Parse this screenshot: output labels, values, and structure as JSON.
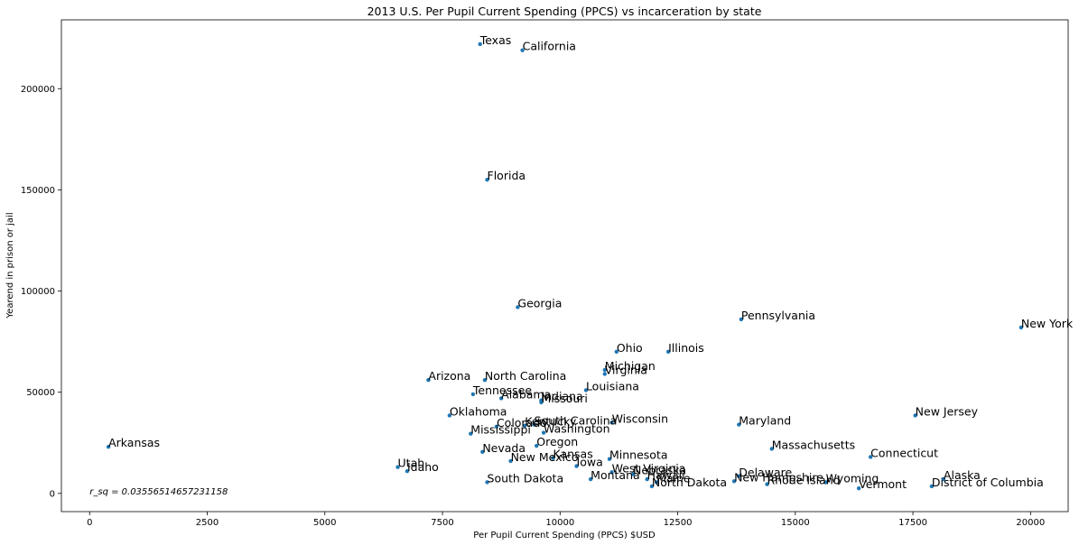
{
  "chart_data": {
    "type": "scatter",
    "title": "2013 U.S. Per Pupil Current Spending (PPCS) vs incarceration by state",
    "xlabel": "Per Pupil Current Spending (PPCS) $USD",
    "ylabel": "Yearend in prison or jail",
    "xlim": [
      -600,
      20800
    ],
    "ylim": [
      -9000,
      234000
    ],
    "xticks": [
      0,
      2500,
      5000,
      7500,
      10000,
      12500,
      15000,
      17500,
      20000
    ],
    "yticks": [
      0,
      50000,
      100000,
      150000,
      200000
    ],
    "grid": false,
    "marker_color": "#1f77b4",
    "annotation": "r_sq = 0.03556514657231158",
    "points": [
      {
        "label": "Texas",
        "x": 8300,
        "y": 222000
      },
      {
        "label": "California",
        "x": 9200,
        "y": 219000
      },
      {
        "label": "Florida",
        "x": 8450,
        "y": 155000
      },
      {
        "label": "Georgia",
        "x": 9100,
        "y": 92000
      },
      {
        "label": "Pennsylvania",
        "x": 13850,
        "y": 86000
      },
      {
        "label": "New York",
        "x": 19800,
        "y": 82000
      },
      {
        "label": "Ohio",
        "x": 11200,
        "y": 70000
      },
      {
        "label": "Illinois",
        "x": 12300,
        "y": 70000
      },
      {
        "label": "Michigan",
        "x": 10950,
        "y": 61000
      },
      {
        "label": "Virginia",
        "x": 10950,
        "y": 59000
      },
      {
        "label": "Arizona",
        "x": 7200,
        "y": 56000
      },
      {
        "label": "North Carolina",
        "x": 8400,
        "y": 56000
      },
      {
        "label": "Louisiana",
        "x": 10550,
        "y": 51000
      },
      {
        "label": "Tennessee",
        "x": 8150,
        "y": 49000
      },
      {
        "label": "Alabama",
        "x": 8750,
        "y": 47000
      },
      {
        "label": "Indiana",
        "x": 9600,
        "y": 46000
      },
      {
        "label": "Missouri",
        "x": 9600,
        "y": 45000
      },
      {
        "label": "New Jersey",
        "x": 17550,
        "y": 38500
      },
      {
        "label": "Oklahoma",
        "x": 7650,
        "y": 38500
      },
      {
        "label": "Wisconsin",
        "x": 11100,
        "y": 35000
      },
      {
        "label": "Maryland",
        "x": 13800,
        "y": 34000
      },
      {
        "label": "South Carolina",
        "x": 9450,
        "y": 34000
      },
      {
        "label": "Kentucky",
        "x": 9250,
        "y": 33500
      },
      {
        "label": "Colorado",
        "x": 8650,
        "y": 33000
      },
      {
        "label": "Washington",
        "x": 9650,
        "y": 30000
      },
      {
        "label": "Mississippi",
        "x": 8100,
        "y": 29500
      },
      {
        "label": "Arkansas",
        "x": 400,
        "y": 23000
      },
      {
        "label": "Oregon",
        "x": 9500,
        "y": 23500
      },
      {
        "label": "Massachusetts",
        "x": 14500,
        "y": 22000
      },
      {
        "label": "Nevada",
        "x": 8350,
        "y": 20500
      },
      {
        "label": "Connecticut",
        "x": 16600,
        "y": 18000
      },
      {
        "label": "Minnesota",
        "x": 11050,
        "y": 17000
      },
      {
        "label": "Kansas",
        "x": 9850,
        "y": 17500
      },
      {
        "label": "New Mexico",
        "x": 8950,
        "y": 16000
      },
      {
        "label": "Iowa",
        "x": 10350,
        "y": 13500
      },
      {
        "label": "Utah",
        "x": 6550,
        "y": 13000
      },
      {
        "label": "Idaho",
        "x": 6750,
        "y": 11000
      },
      {
        "label": "West Virginia",
        "x": 11100,
        "y": 10500
      },
      {
        "label": "Nebraska",
        "x": 11550,
        "y": 9500
      },
      {
        "label": "Delaware",
        "x": 13800,
        "y": 8500
      },
      {
        "label": "Hawaii",
        "x": 11850,
        "y": 7000
      },
      {
        "label": "Alaska",
        "x": 18150,
        "y": 7000
      },
      {
        "label": "Montana",
        "x": 10650,
        "y": 7000
      },
      {
        "label": "New Hampshire",
        "x": 13700,
        "y": 6000
      },
      {
        "label": "Wyoming",
        "x": 15650,
        "y": 5500
      },
      {
        "label": "Maine",
        "x": 12050,
        "y": 5500
      },
      {
        "label": "South Dakota",
        "x": 8450,
        "y": 5500
      },
      {
        "label": "Rhode Island",
        "x": 14400,
        "y": 4500
      },
      {
        "label": "District of Columbia",
        "x": 17900,
        "y": 3500
      },
      {
        "label": "North Dakota",
        "x": 11950,
        "y": 3500
      },
      {
        "label": "Vermont",
        "x": 16350,
        "y": 2500
      }
    ]
  }
}
